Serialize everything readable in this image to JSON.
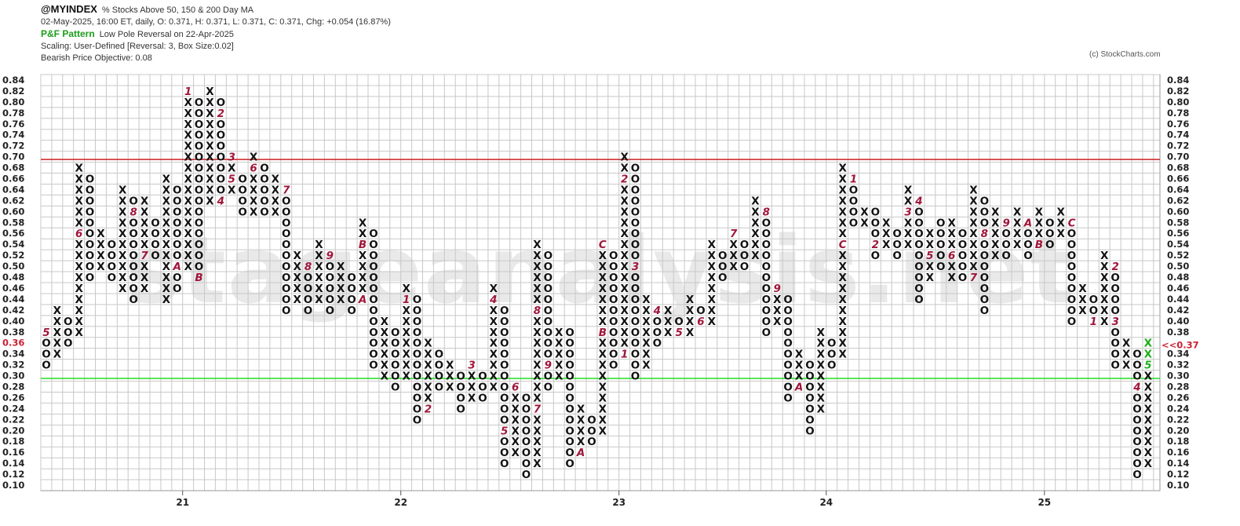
{
  "header": {
    "symbol": "@MYINDEX",
    "description": "% Stocks Above 50, 150 & 200 Day MA",
    "quote": "02-May-2025, 16:00 ET, daily, O: 0.371, H: 0.371, L: 0.371, C: 0.371, Chg: +0.054 (16.87%)",
    "pattern_label": "P&F Pattern",
    "pattern_desc": "Low Pole Reversal on 22-Apr-2025",
    "scaling": "Scaling: User-Defined [Reversal: 3, Box Size:0.02]",
    "objective": "Bearish Price Objective: 0.08"
  },
  "credit": "(c) StockCharts.com",
  "watermark": "stageanalysis.net",
  "colors": {
    "x_mark": "#111111",
    "o_mark": "#111111",
    "month_mark": "#a0163a",
    "latest_mark": "#1cb01c",
    "resistance": "#cc2222",
    "support": "#22dd22",
    "grid": "#c8c8c8",
    "current_label": "#cc2233"
  },
  "chart_data": {
    "type": "point-and-figure",
    "box_size": 0.02,
    "reversal": 3,
    "y_range": [
      0.1,
      0.84
    ],
    "y_ticks": [
      "0.84",
      "0.82",
      "0.80",
      "0.78",
      "0.76",
      "0.74",
      "0.72",
      "0.70",
      "0.68",
      "0.66",
      "0.64",
      "0.62",
      "0.60",
      "0.58",
      "0.56",
      "0.54",
      "0.52",
      "0.50",
      "0.48",
      "0.46",
      "0.44",
      "0.42",
      "0.40",
      "0.38",
      "0.36",
      "0.34",
      "0.32",
      "0.30",
      "0.28",
      "0.26",
      "0.24",
      "0.22",
      "0.20",
      "0.18",
      "0.16",
      "0.14",
      "0.12",
      "0.10"
    ],
    "current_value": 0.37,
    "current_label": "<<0.37",
    "current_label_left": "0.36",
    "resistance_level": 0.695,
    "support_level": 0.295,
    "year_labels": [
      {
        "label": "21",
        "column": 13
      },
      {
        "label": "22",
        "column": 33
      },
      {
        "label": "23",
        "column": 53
      },
      {
        "label": "24",
        "column": 72
      },
      {
        "label": "25",
        "column": 92
      }
    ],
    "columns": [
      {
        "type": "O",
        "high": 0.38,
        "low": 0.32,
        "marks": {
          "0.38": "5"
        }
      },
      {
        "type": "X",
        "high": 0.42,
        "low": 0.34
      },
      {
        "type": "O",
        "high": 0.4,
        "low": 0.36
      },
      {
        "type": "X",
        "high": 0.68,
        "low": 0.38,
        "marks": {
          "0.56": "6"
        }
      },
      {
        "type": "O",
        "high": 0.66,
        "low": 0.48
      },
      {
        "type": "X",
        "high": 0.56,
        "low": 0.5
      },
      {
        "type": "O",
        "high": 0.54,
        "low": 0.48
      },
      {
        "type": "X",
        "high": 0.64,
        "low": 0.46
      },
      {
        "type": "O",
        "high": 0.62,
        "low": 0.44,
        "marks": {
          "0.60": "8"
        }
      },
      {
        "type": "X",
        "high": 0.62,
        "low": 0.46,
        "marks": {
          "0.52": "7"
        }
      },
      {
        "type": "O",
        "high": 0.58,
        "low": 0.52,
        "marks": {
          "0.62": "9"
        }
      },
      {
        "type": "X",
        "high": 0.66,
        "low": 0.44
      },
      {
        "type": "O",
        "high": 0.64,
        "low": 0.46,
        "marks": {
          "0.50": "A"
        }
      },
      {
        "type": "X",
        "high": 0.82,
        "low": 0.5,
        "marks": {
          "0.82": "1"
        }
      },
      {
        "type": "O",
        "high": 0.8,
        "low": 0.48,
        "marks": {
          "0.48": "B"
        }
      },
      {
        "type": "X",
        "high": 0.82,
        "low": 0.62
      },
      {
        "type": "O",
        "high": 0.8,
        "low": 0.62,
        "marks": {
          "0.78": "2",
          "0.62": "4"
        }
      },
      {
        "type": "X",
        "high": 0.7,
        "low": 0.64,
        "marks": {
          "0.70": "3",
          "0.66": "5"
        }
      },
      {
        "type": "O",
        "high": 0.66,
        "low": 0.6
      },
      {
        "type": "X",
        "high": 0.7,
        "low": 0.6,
        "marks": {
          "0.68": "6"
        }
      },
      {
        "type": "O",
        "high": 0.68,
        "low": 0.6
      },
      {
        "type": "X",
        "high": 0.66,
        "low": 0.6
      },
      {
        "type": "O",
        "high": 0.64,
        "low": 0.42,
        "marks": {
          "0.64": "7"
        }
      },
      {
        "type": "X",
        "high": 0.52,
        "low": 0.44
      },
      {
        "type": "O",
        "high": 0.5,
        "low": 0.42,
        "marks": {
          "0.50": "8"
        }
      },
      {
        "type": "X",
        "high": 0.54,
        "low": 0.44
      },
      {
        "type": "O",
        "high": 0.52,
        "low": 0.42,
        "marks": {
          "0.52": "9"
        }
      },
      {
        "type": "X",
        "high": 0.5,
        "low": 0.44
      },
      {
        "type": "O",
        "high": 0.48,
        "low": 0.42
      },
      {
        "type": "X",
        "high": 0.58,
        "low": 0.44,
        "marks": {
          "0.54": "B",
          "0.44": "A"
        }
      },
      {
        "type": "O",
        "high": 0.56,
        "low": 0.32,
        "marks": {
          "0.30": "C"
        }
      },
      {
        "type": "X",
        "high": 0.4,
        "low": 0.3
      },
      {
        "type": "O",
        "high": 0.38,
        "low": 0.28
      },
      {
        "type": "X",
        "high": 0.46,
        "low": 0.3,
        "marks": {
          "0.44": "1"
        }
      },
      {
        "type": "O",
        "high": 0.44,
        "low": 0.22
      },
      {
        "type": "X",
        "high": 0.36,
        "low": 0.24,
        "marks": {
          "0.24": "2"
        }
      },
      {
        "type": "O",
        "high": 0.34,
        "low": 0.28
      },
      {
        "type": "X",
        "high": 0.32,
        "low": 0.28
      },
      {
        "type": "O",
        "high": 0.3,
        "low": 0.24
      },
      {
        "type": "X",
        "high": 0.32,
        "low": 0.26,
        "marks": {
          "0.32": "3"
        }
      },
      {
        "type": "O",
        "high": 0.3,
        "low": 0.26
      },
      {
        "type": "X",
        "high": 0.46,
        "low": 0.28,
        "marks": {
          "0.44": "4"
        }
      },
      {
        "type": "O",
        "high": 0.42,
        "low": 0.14,
        "marks": {
          "0.20": "5"
        }
      },
      {
        "type": "X",
        "high": 0.28,
        "low": 0.16,
        "marks": {
          "0.28": "6"
        }
      },
      {
        "type": "O",
        "high": 0.26,
        "low": 0.12
      },
      {
        "type": "X",
        "high": 0.54,
        "low": 0.14,
        "marks": {
          "0.42": "8",
          "0.24": "7"
        }
      },
      {
        "type": "O",
        "high": 0.52,
        "low": 0.28,
        "marks": {
          "0.32": "9"
        }
      },
      {
        "type": "X",
        "high": 0.38,
        "low": 0.3
      },
      {
        "type": "O",
        "high": 0.38,
        "low": 0.14
      },
      {
        "type": "X",
        "high": 0.24,
        "low": 0.16,
        "marks": {
          "0.16": "A"
        }
      },
      {
        "type": "O",
        "high": 0.22,
        "low": 0.18
      },
      {
        "type": "X",
        "high": 0.54,
        "low": 0.2,
        "marks": {
          "0.54": "C",
          "0.38": "B"
        }
      },
      {
        "type": "O",
        "high": 0.52,
        "low": 0.32
      },
      {
        "type": "X",
        "high": 0.7,
        "low": 0.34,
        "marks": {
          "0.66": "2",
          "0.34": "1"
        }
      },
      {
        "type": "O",
        "high": 0.68,
        "low": 0.3,
        "marks": {
          "0.50": "3"
        }
      },
      {
        "type": "X",
        "high": 0.44,
        "low": 0.32
      },
      {
        "type": "O",
        "high": 0.42,
        "low": 0.36,
        "marks": {
          "0.42": "4"
        }
      },
      {
        "type": "X",
        "high": 0.42,
        "low": 0.38
      },
      {
        "type": "O",
        "high": 0.4,
        "low": 0.38,
        "marks": {
          "0.38": "5"
        }
      },
      {
        "type": "X",
        "high": 0.44,
        "low": 0.38
      },
      {
        "type": "O",
        "high": 0.42,
        "low": 0.4,
        "marks": {
          "0.40": "6"
        }
      },
      {
        "type": "X",
        "high": 0.54,
        "low": 0.4
      },
      {
        "type": "O",
        "high": 0.52,
        "low": 0.48
      },
      {
        "type": "X",
        "high": 0.56,
        "low": 0.5,
        "marks": {
          "0.56": "7"
        }
      },
      {
        "type": "O",
        "high": 0.54,
        "low": 0.5
      },
      {
        "type": "X",
        "high": 0.62,
        "low": 0.52
      },
      {
        "type": "O",
        "high": 0.6,
        "low": 0.38,
        "marks": {
          "0.60": "8"
        }
      },
      {
        "type": "X",
        "high": 0.46,
        "low": 0.4,
        "marks": {
          "0.46": "9"
        }
      },
      {
        "type": "O",
        "high": 0.44,
        "low": 0.26
      },
      {
        "type": "X",
        "high": 0.34,
        "low": 0.28,
        "marks": {
          "0.28": "A"
        }
      },
      {
        "type": "O",
        "high": 0.32,
        "low": 0.2
      },
      {
        "type": "X",
        "high": 0.38,
        "low": 0.24,
        "marks": {
          "0.22": "B"
        }
      },
      {
        "type": "O",
        "high": 0.36,
        "low": 0.32
      },
      {
        "type": "X",
        "high": 0.68,
        "low": 0.34,
        "marks": {
          "0.54": "C"
        }
      },
      {
        "type": "O",
        "high": 0.66,
        "low": 0.58,
        "marks": {
          "0.66": "1"
        }
      },
      {
        "type": "X",
        "high": 0.6,
        "low": 0.58
      },
      {
        "type": "O",
        "high": 0.6,
        "low": 0.52,
        "marks": {
          "0.54": "2"
        }
      },
      {
        "type": "X",
        "high": 0.58,
        "low": 0.54
      },
      {
        "type": "O",
        "high": 0.56,
        "low": 0.52
      },
      {
        "type": "X",
        "high": 0.64,
        "low": 0.54,
        "marks": {
          "0.60": "3"
        }
      },
      {
        "type": "O",
        "high": 0.62,
        "low": 0.44,
        "marks": {
          "0.62": "4"
        }
      },
      {
        "type": "X",
        "high": 0.56,
        "low": 0.48,
        "marks": {
          "0.52": "5"
        }
      },
      {
        "type": "O",
        "high": 0.58,
        "low": 0.5
      },
      {
        "type": "X",
        "high": 0.58,
        "low": 0.48,
        "marks": {
          "0.52": "6"
        }
      },
      {
        "type": "O",
        "high": 0.56,
        "low": 0.48
      },
      {
        "type": "X",
        "high": 0.64,
        "low": 0.48,
        "marks": {
          "0.48": "7"
        }
      },
      {
        "type": "O",
        "high": 0.62,
        "low": 0.42,
        "marks": {
          "0.56": "8"
        }
      },
      {
        "type": "X",
        "high": 0.6,
        "low": 0.52
      },
      {
        "type": "O",
        "high": 0.58,
        "low": 0.52,
        "marks": {
          "0.58": "9"
        }
      },
      {
        "type": "X",
        "high": 0.6,
        "low": 0.54
      },
      {
        "type": "O",
        "high": 0.58,
        "low": 0.52,
        "marks": {
          "0.58": "A"
        }
      },
      {
        "type": "X",
        "high": 0.6,
        "low": 0.54,
        "marks": {
          "0.54": "B"
        }
      },
      {
        "type": "O",
        "high": 0.58,
        "low": 0.54
      },
      {
        "type": "X",
        "high": 0.6,
        "low": 0.56
      },
      {
        "type": "O",
        "high": 0.58,
        "low": 0.4,
        "marks": {
          "0.58": "C"
        }
      },
      {
        "type": "X",
        "high": 0.46,
        "low": 0.42
      },
      {
        "type": "O",
        "high": 0.44,
        "low": 0.4,
        "marks": {
          "0.40": "1"
        }
      },
      {
        "type": "X",
        "high": 0.52,
        "low": 0.4
      },
      {
        "type": "O",
        "high": 0.5,
        "low": 0.32,
        "marks": {
          "0.50": "2",
          "0.40": "3"
        }
      },
      {
        "type": "X",
        "high": 0.36,
        "low": 0.32
      },
      {
        "type": "O",
        "high": 0.34,
        "low": 0.12,
        "marks": {
          "0.28": "4"
        }
      },
      {
        "type": "X",
        "high": 0.36,
        "low": 0.14,
        "marks": {
          "0.36": "X",
          "0.34": "X",
          "0.32": "5"
        }
      }
    ]
  }
}
